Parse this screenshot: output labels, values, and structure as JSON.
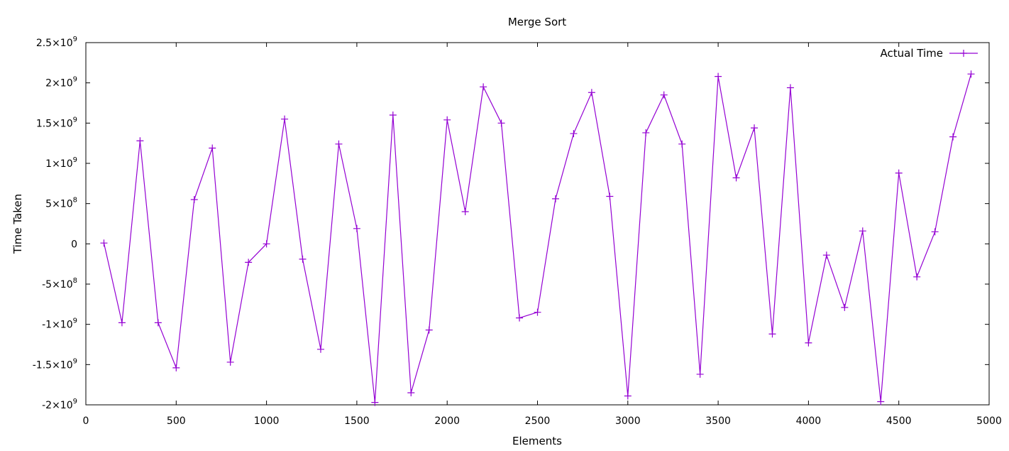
{
  "chart_data": {
    "type": "line",
    "title": "Merge Sort",
    "xlabel": "Elements",
    "ylabel": "Time Taken",
    "xlim": [
      0,
      5000
    ],
    "ylim": [
      -2000000000,
      2500000000
    ],
    "x_ticks": [
      0,
      500,
      1000,
      1500,
      2000,
      2500,
      3000,
      3500,
      4000,
      4500,
      5000
    ],
    "x_tick_labels": [
      "0",
      "500",
      "1000",
      "1500",
      "2000",
      "2500",
      "3000",
      "3500",
      "4000",
      "4500",
      "5000"
    ],
    "y_ticks": [
      -2000000000,
      -1500000000,
      -1000000000,
      -500000000,
      0,
      500000000,
      1000000000,
      1500000000,
      2000000000,
      2500000000
    ],
    "y_tick_labels": [
      {
        "mantissa": "-2×10",
        "exp": "9"
      },
      {
        "mantissa": "-1.5×10",
        "exp": "9"
      },
      {
        "mantissa": "-1×10",
        "exp": "9"
      },
      {
        "mantissa": "-5×10",
        "exp": "8"
      },
      {
        "mantissa": "0",
        "exp": ""
      },
      {
        "mantissa": "5×10",
        "exp": "8"
      },
      {
        "mantissa": "1×10",
        "exp": "9"
      },
      {
        "mantissa": "1.5×10",
        "exp": "9"
      },
      {
        "mantissa": "2×10",
        "exp": "9"
      },
      {
        "mantissa": "2.5×10",
        "exp": "9"
      }
    ],
    "grid": false,
    "legend": "top-right",
    "color": "#9400d3",
    "series": [
      {
        "name": "Actual Time",
        "x": [
          100,
          200,
          300,
          400,
          500,
          600,
          700,
          800,
          900,
          1000,
          1100,
          1200,
          1300,
          1400,
          1500,
          1600,
          1700,
          1800,
          1900,
          2000,
          2100,
          2200,
          2300,
          2400,
          2500,
          2600,
          2700,
          2800,
          2900,
          3000,
          3100,
          3200,
          3300,
          3400,
          3500,
          3600,
          3700,
          3800,
          3900,
          4000,
          4100,
          4200,
          4300,
          4400,
          4500,
          4600,
          4700,
          4800,
          4900
        ],
        "y": [
          10000000,
          -980000000,
          1280000000,
          -980000000,
          -1540000000,
          550000000,
          1190000000,
          -1470000000,
          -230000000,
          0,
          1550000000,
          -190000000,
          -1310000000,
          1240000000,
          190000000,
          -1970000000,
          1600000000,
          -1850000000,
          -1070000000,
          1540000000,
          400000000,
          1950000000,
          1500000000,
          -920000000,
          -850000000,
          560000000,
          1370000000,
          1880000000,
          590000000,
          -1890000000,
          1380000000,
          1850000000,
          1240000000,
          -1620000000,
          2080000000,
          820000000,
          1440000000,
          -1120000000,
          1940000000,
          -1230000000,
          -140000000,
          -790000000,
          160000000,
          -1960000000,
          880000000,
          -410000000,
          150000000,
          1330000000,
          2110000000
        ]
      }
    ]
  }
}
